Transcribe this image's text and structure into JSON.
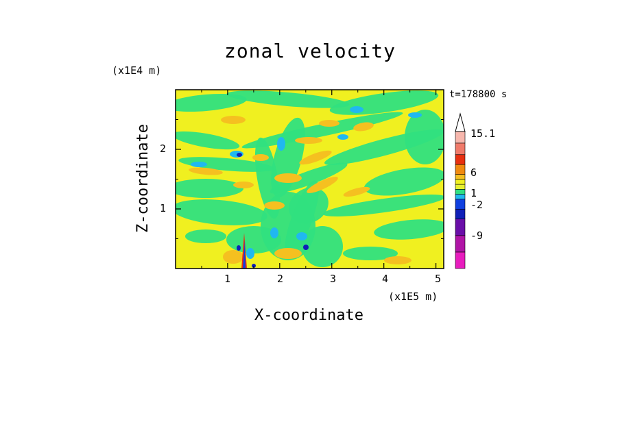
{
  "chart_data": {
    "type": "heatmap",
    "title": "zonal velocity",
    "xlabel": "X-coordinate",
    "ylabel": "Z-coordinate",
    "x_unit": "(x1E5 m)",
    "y_unit": "(x1E4 m)",
    "time_label": "t=178800 s",
    "xlim": [
      0,
      5.15
    ],
    "ylim": [
      0,
      3.0
    ],
    "x_ticks": [
      "1",
      "2",
      "3",
      "4",
      "5"
    ],
    "x_tick_values": [
      1,
      2,
      3,
      4,
      5
    ],
    "y_ticks": [
      "1",
      "2"
    ],
    "y_tick_values": [
      1,
      2
    ],
    "colorbar": {
      "levels": [
        -12,
        -9,
        -6,
        -3,
        -2,
        -1,
        0,
        1,
        2,
        3,
        6,
        9,
        12,
        15.1
      ],
      "labeled_levels": [
        "15.1",
        "6",
        "1",
        "-2",
        "-9"
      ],
      "labeled_values": [
        15.1,
        6,
        1,
        -2,
        -9
      ],
      "colors": [
        "#e81dbe",
        "#b015a6",
        "#6a0fa8",
        "#1020b8",
        "#1040e0",
        "#20b8f0",
        "#30e080",
        "#e6f030",
        "#f0f020",
        "#f5c020",
        "#f08a10",
        "#e83010",
        "#f07a6a",
        "#f7b7ad"
      ]
    },
    "background_color": "#f0f020",
    "secondary_color": "#30e080"
  }
}
